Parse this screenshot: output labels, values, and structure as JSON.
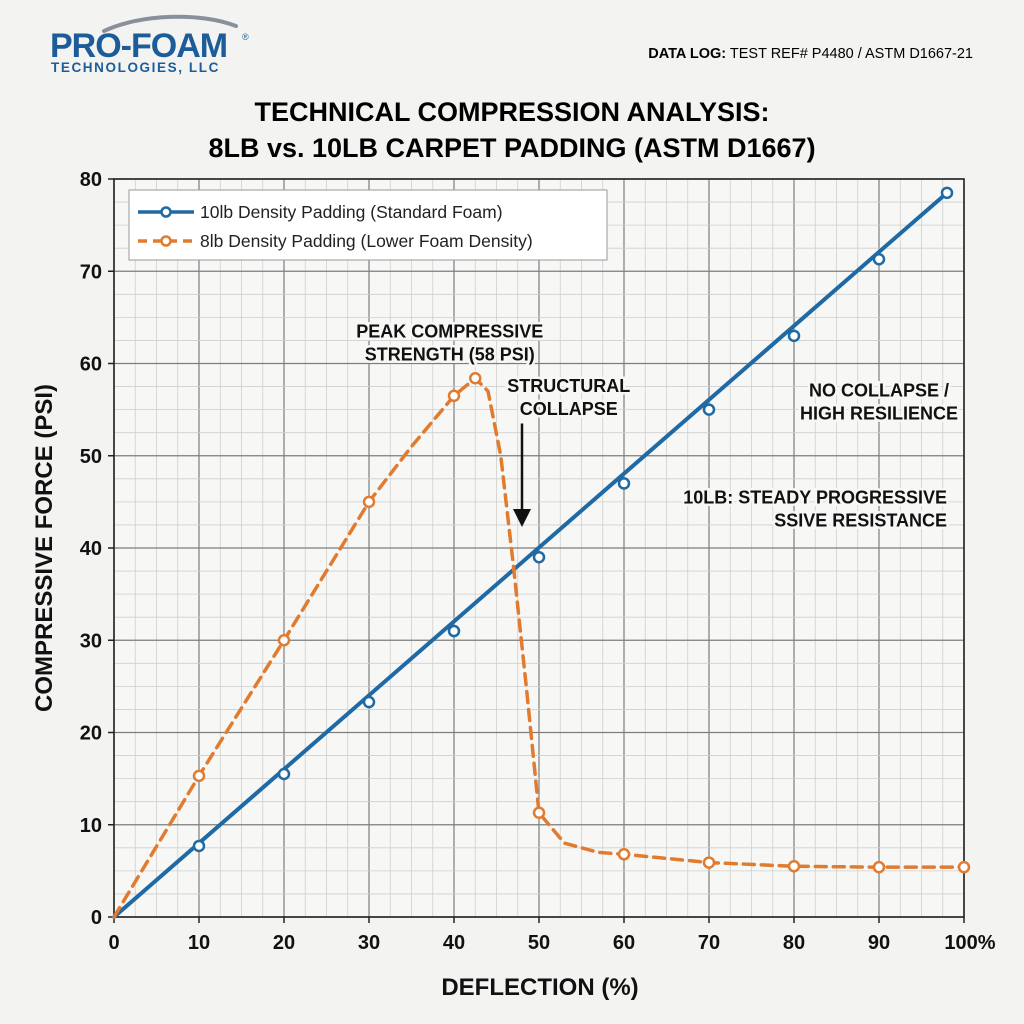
{
  "header": {
    "logo_main": "PRO-FOAM",
    "logo_reg": "®",
    "logo_sub": "TECHNOLOGIES, LLC",
    "datalog_label": "DATA LOG:",
    "datalog_value": " TEST REF# P4480 / ASTM D1667-21"
  },
  "chart_data": {
    "type": "line",
    "title_lines": [
      "TECHNICAL COMPRESSION ANALYSIS:",
      "8LB vs. 10LB CARPET PADDING (ASTM D1667)"
    ],
    "xlabel": "DEFLECTION (%)",
    "ylabel": "COMPRESSIVE FORCE (PSI)",
    "xlim": [
      0,
      100
    ],
    "ylim": [
      0,
      80
    ],
    "x_ticks": [
      "0",
      "10",
      "20",
      "30",
      "40",
      "50",
      "60",
      "70",
      "80",
      "90",
      "100%"
    ],
    "y_ticks": [
      "0",
      "10",
      "20",
      "30",
      "40",
      "50",
      "60",
      "70",
      "80"
    ],
    "grid": true,
    "legend_position": "top-left",
    "series": [
      {
        "name": "10lb Density Padding (Standard Foam)",
        "color": "#1f6aa5",
        "style": "solid",
        "line": [
          [
            0,
            0
          ],
          [
            98,
            78.5
          ]
        ],
        "markers": [
          [
            10,
            7.7
          ],
          [
            20,
            15.5
          ],
          [
            30,
            23.3
          ],
          [
            40,
            31
          ],
          [
            50,
            39
          ],
          [
            60,
            47
          ],
          [
            70,
            55
          ],
          [
            80,
            63
          ],
          [
            90,
            71.3
          ],
          [
            98,
            78.5
          ]
        ]
      },
      {
        "name": "8lb Density Padding (Lower Foam Density)",
        "color": "#e07b2f",
        "style": "dashed",
        "line": [
          [
            0,
            0
          ],
          [
            10,
            15.3
          ],
          [
            20,
            30
          ],
          [
            30,
            45
          ],
          [
            35,
            51
          ],
          [
            40,
            56.5
          ],
          [
            42.5,
            58.4
          ],
          [
            44,
            57
          ],
          [
            45.5,
            50
          ],
          [
            47,
            38
          ],
          [
            48.5,
            25
          ],
          [
            50,
            11.3
          ],
          [
            53,
            8
          ],
          [
            57,
            7
          ],
          [
            60,
            6.8
          ],
          [
            70,
            5.9
          ],
          [
            80,
            5.5
          ],
          [
            90,
            5.4
          ],
          [
            100,
            5.4
          ]
        ],
        "markers": [
          [
            10,
            15.3
          ],
          [
            20,
            30
          ],
          [
            30,
            45
          ],
          [
            40,
            56.5
          ],
          [
            42.5,
            58.4
          ],
          [
            50,
            11.3
          ],
          [
            60,
            6.8
          ],
          [
            70,
            5.9
          ],
          [
            80,
            5.5
          ],
          [
            90,
            5.4
          ],
          [
            100,
            5.4
          ]
        ]
      }
    ],
    "annotations": [
      {
        "lines": [
          "PEAK COMPRESSIVE",
          "STRENGTH (58 PSI)"
        ],
        "x": 39.5,
        "y": 62.8
      },
      {
        "lines": [
          "STRUCTURAL",
          "COLLAPSE"
        ],
        "x": 53.5,
        "y": 56.9,
        "arrow_from": [
          48,
          53.5
        ],
        "arrow_to": [
          48,
          42.5
        ]
      },
      {
        "lines": [
          "NO COLLAPSE /",
          "HIGH RESILIENCE"
        ],
        "x": 90,
        "y": 56.4
      },
      {
        "lines": [
          "10LB: STEADY PROGRESSIVE",
          "SSIVE RESISTANCE"
        ],
        "x": 98,
        "y": 44.8
      }
    ]
  }
}
